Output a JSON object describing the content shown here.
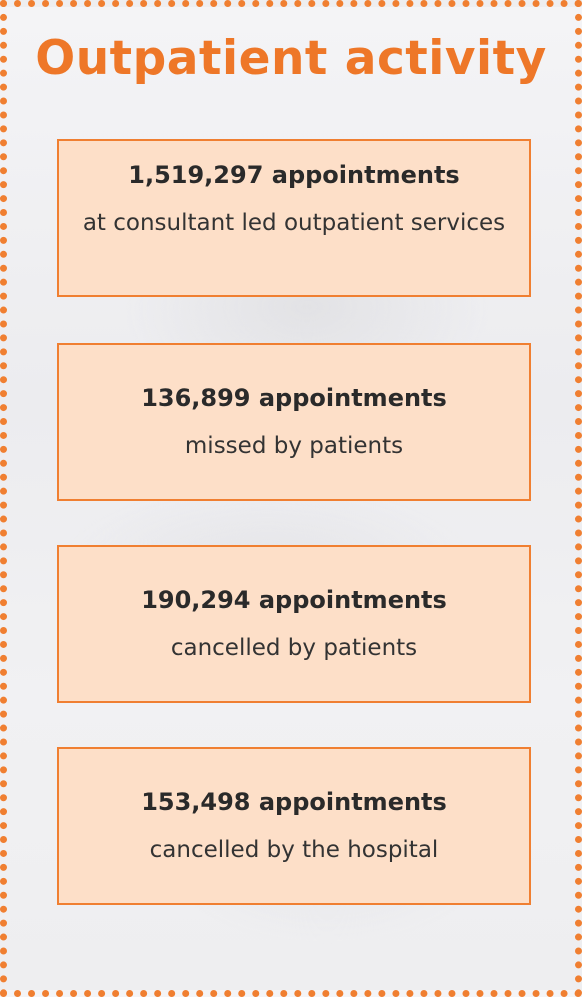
{
  "title": "Outpatient activity",
  "stats": [
    {
      "value": "1,519,297 appointments",
      "label": "at consultant led outpatient services"
    },
    {
      "value": "136,899 appointments",
      "label": "missed by patients"
    },
    {
      "value": "190,294 appointments",
      "label": "cancelled by patients"
    },
    {
      "value": "153,498 appointments",
      "label": "cancelled by the hospital"
    }
  ],
  "colors": {
    "accent": "#f07f31",
    "title": "#ee7728",
    "box_fill": "#fddfc8",
    "text": "#2a2a2a"
  }
}
